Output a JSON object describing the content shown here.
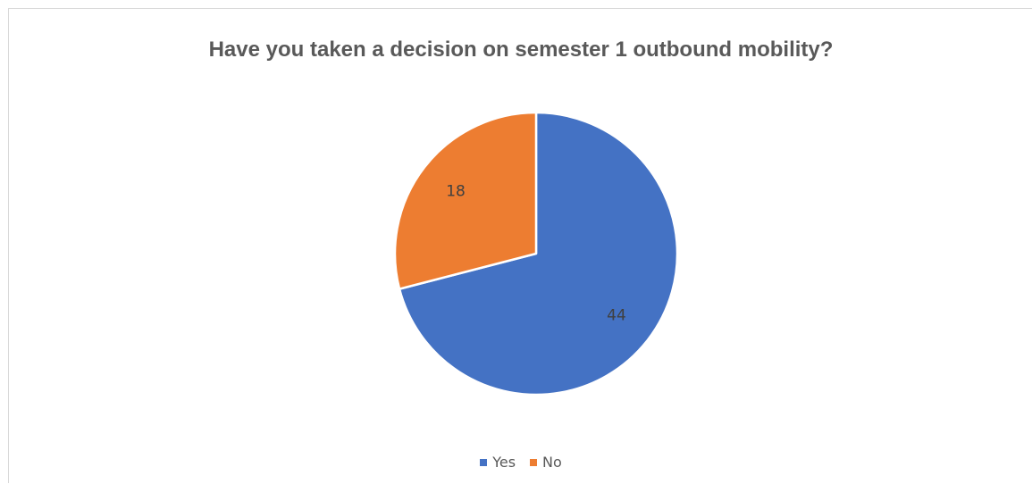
{
  "chart_data": {
    "type": "pie",
    "title": "Have you taken a decision on semester 1 outbound mobility?",
    "categories": [
      "Yes",
      "No"
    ],
    "values": [
      44,
      18
    ],
    "colors": [
      "#4472c4",
      "#ed7d31"
    ],
    "legend": "bottom",
    "data_labels": [
      "44",
      "18"
    ]
  }
}
